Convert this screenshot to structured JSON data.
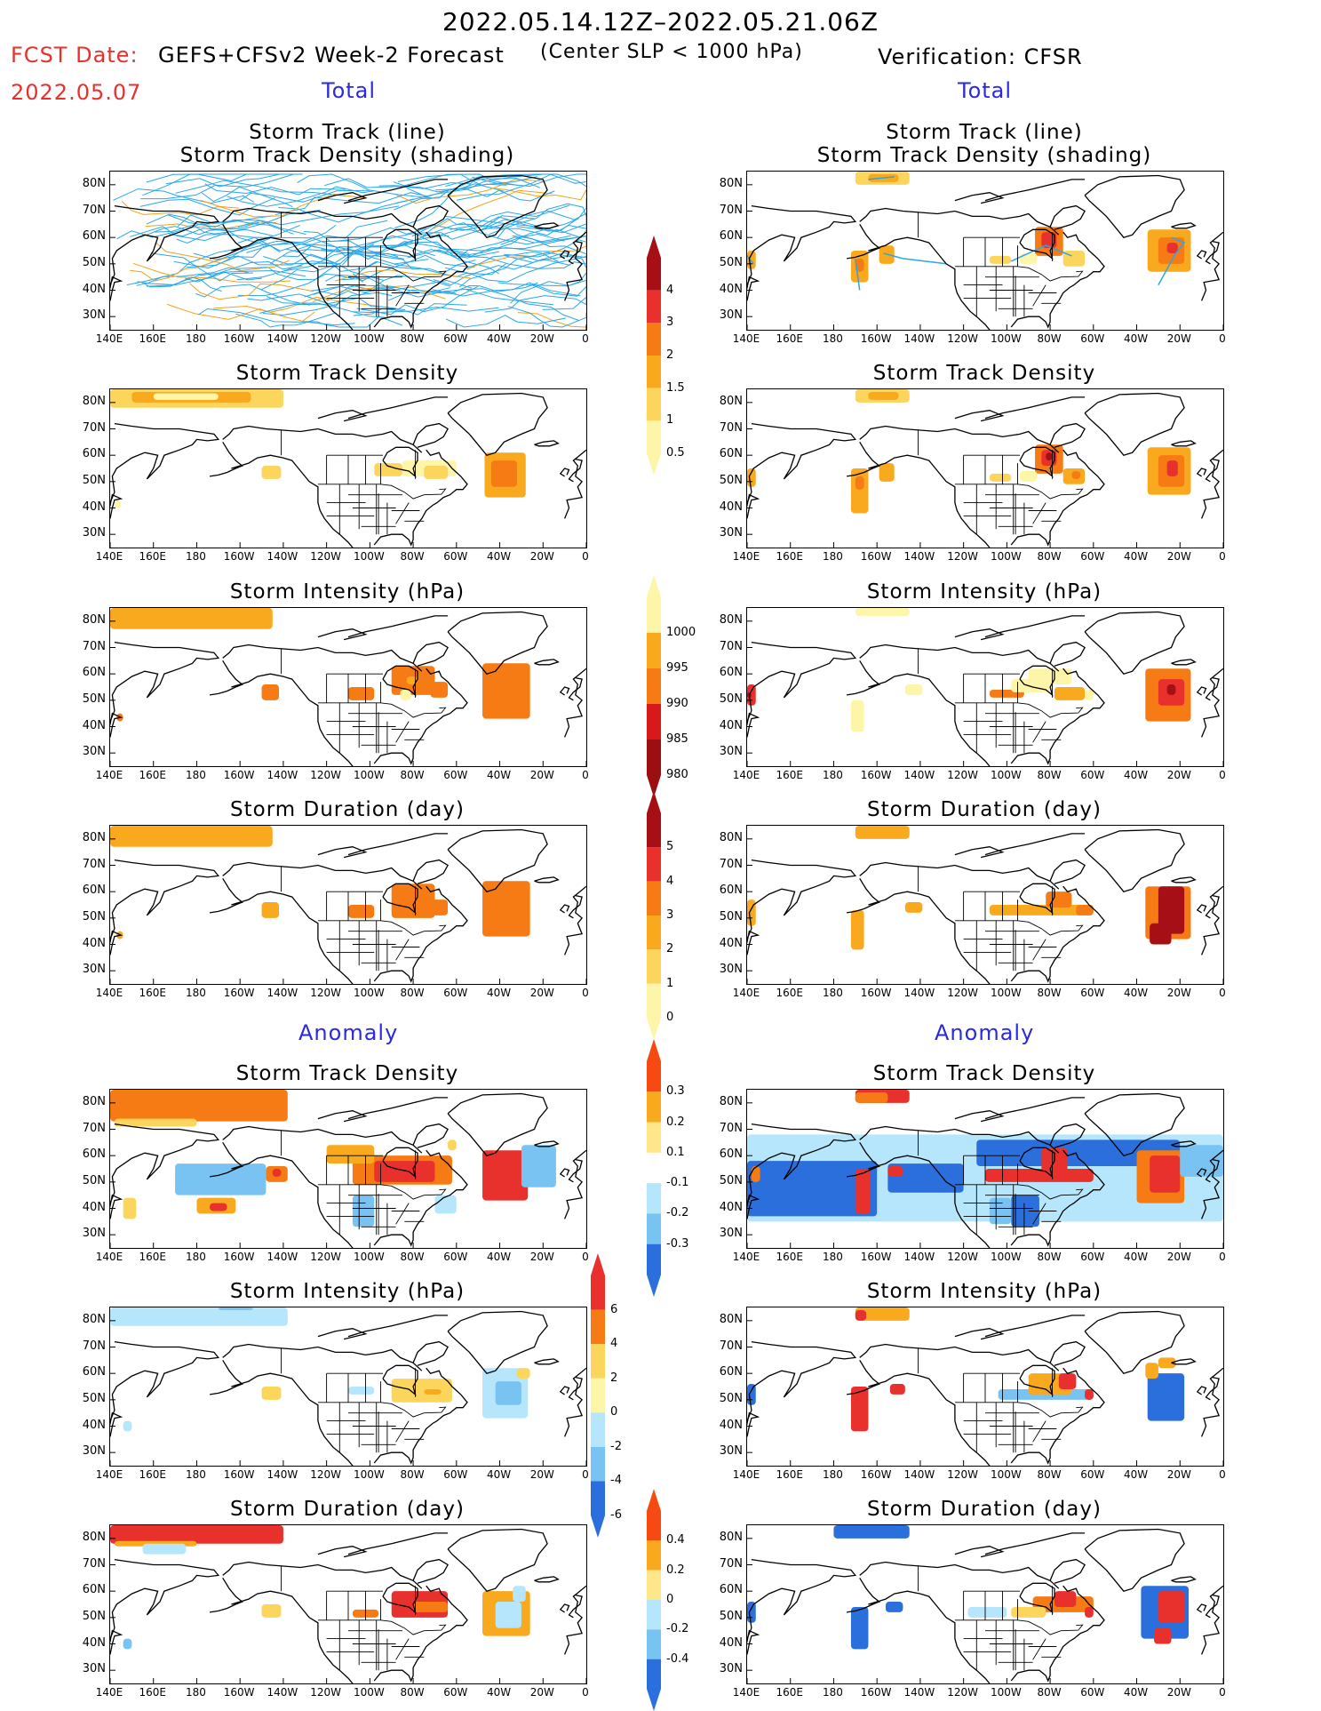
{
  "header": {
    "period": "2022.05.14.12Z–2022.05.21.06Z",
    "fcst_label": "FCST Date:",
    "fcst_date": "2022.05.07",
    "forecast_title": "GEFS+CFSv2 Week-2 Forecast",
    "criterion": "(Center SLP < 1000 hPa)",
    "verification": "Verification: CFSR"
  },
  "sections": {
    "total": "Total",
    "anomaly": "Anomaly"
  },
  "panel_titles": {
    "track_line": "Storm Track (line)",
    "track_shading": "Storm Track Density (shading)",
    "density": "Storm Track Density",
    "intensity": "Storm Intensity (hPa)",
    "duration": "Storm Duration (day)"
  },
  "axes": {
    "lat_labels": [
      "80N",
      "70N",
      "60N",
      "50N",
      "40N",
      "30N"
    ],
    "lon_labels": [
      "140E",
      "160E",
      "180",
      "160W",
      "140W",
      "120W",
      "100W",
      "80W",
      "60W",
      "40W",
      "20W",
      "0"
    ]
  },
  "colorbars": {
    "density": {
      "labels": [
        "4",
        "3",
        "2",
        "1.5",
        "1",
        "0.5"
      ],
      "colors": [
        "#a50f15",
        "#e8302c",
        "#f77b14",
        "#f9a91d",
        "#fbd55c",
        "#fdf5a8"
      ]
    },
    "intensity": {
      "labels": [
        "1000",
        "995",
        "990",
        "985",
        "980"
      ],
      "colors": [
        "#fdf5a8",
        "#f9a91d",
        "#f77b14",
        "#d7191c",
        "#9b0e12"
      ]
    },
    "duration": {
      "labels": [
        "5",
        "4",
        "3",
        "2",
        "1",
        "0"
      ],
      "colors": [
        "#a50f15",
        "#e8302c",
        "#f77b14",
        "#f9a91d",
        "#fbd55c",
        "#fdf5a8"
      ]
    },
    "anom_density": {
      "labels": [
        "0.3",
        "0.2",
        "0.1",
        "-0.1",
        "-0.2",
        "-0.3"
      ],
      "colors": [
        "#f74a12",
        "#f9a91d",
        "#fde78a",
        "#ffffff",
        "#b6e6fb",
        "#79c3f2",
        "#2a6fdb"
      ]
    },
    "anom_intensity": {
      "labels": [
        "6",
        "4",
        "2",
        "0",
        "-2",
        "-4",
        "-6"
      ],
      "colors": [
        "#e8302c",
        "#f77b14",
        "#fbd55c",
        "#fdf5a8",
        "#b6e6fb",
        "#79c3f2",
        "#2a6fdb"
      ]
    },
    "anom_duration": {
      "labels": [
        "0.4",
        "0.2",
        "0",
        "-0.2",
        "-0.4"
      ],
      "colors": [
        "#f74a12",
        "#f9a91d",
        "#fde78a",
        "#b6e6fb",
        "#79c3f2",
        "#2a6fdb"
      ]
    }
  }
}
